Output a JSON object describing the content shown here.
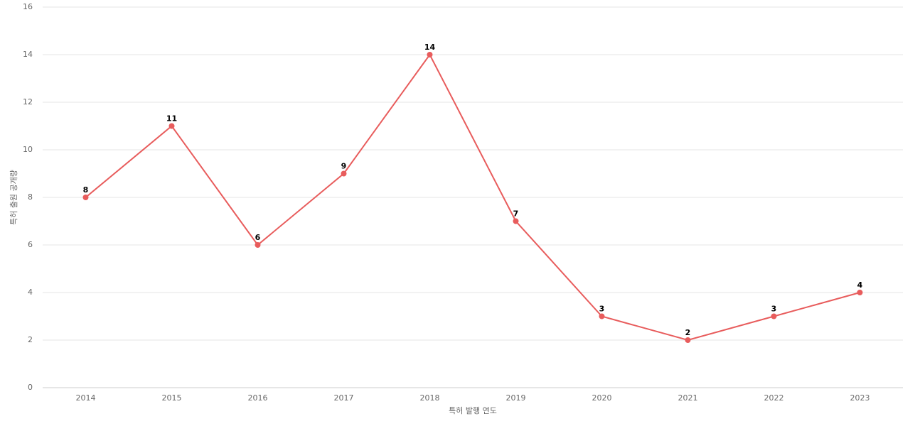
{
  "chart_data": {
    "type": "line",
    "x_label": "특허 발행 연도",
    "y_label": "특허 출원 공개량",
    "categories": [
      "2014",
      "2015",
      "2016",
      "2017",
      "2018",
      "2019",
      "2020",
      "2021",
      "2022",
      "2023"
    ],
    "series": [
      {
        "name": "특허 출원 공개량",
        "color": "#e85c5c",
        "values": [
          8,
          11,
          6,
          9,
          14,
          7,
          3,
          2,
          3,
          4
        ]
      }
    ],
    "ylim": [
      0,
      16
    ],
    "yticks": [
      0,
      2,
      4,
      6,
      8,
      10,
      12,
      14,
      16
    ],
    "grid": true
  }
}
